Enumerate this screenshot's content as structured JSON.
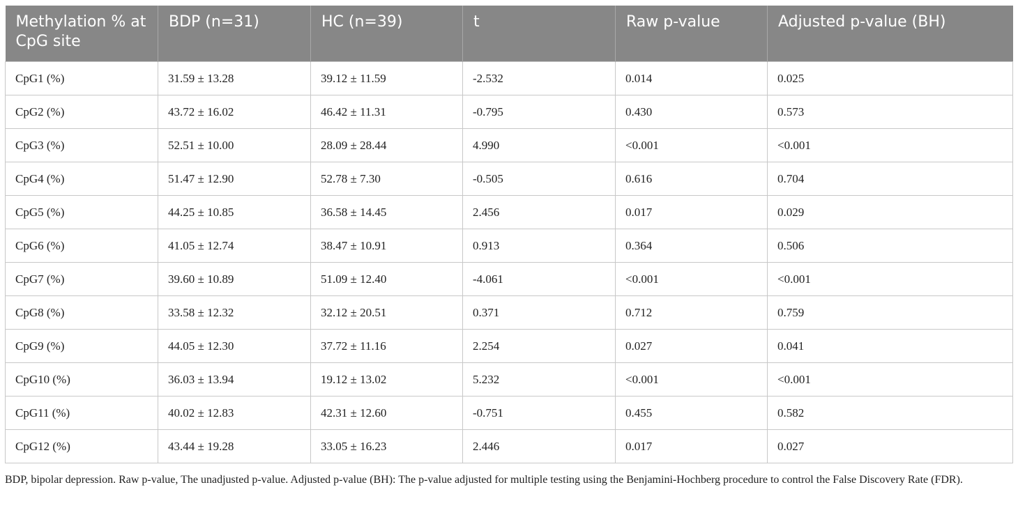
{
  "table": {
    "header": [
      "Methylation % at CpG site",
      "BDP (n=31)",
      "HC (n=39)",
      "t",
      "Raw p-value",
      "Adjusted p-value (BH)"
    ],
    "rows": [
      [
        "CpG1 (%)",
        "31.59 ± 13.28",
        "39.12 ± 11.59",
        "-2.532",
        "0.014",
        "0.025"
      ],
      [
        "CpG2 (%)",
        "43.72 ± 16.02",
        "46.42 ± 11.31",
        "-0.795",
        "0.430",
        "0.573"
      ],
      [
        "CpG3 (%)",
        "52.51 ± 10.00",
        "28.09 ± 28.44",
        "4.990",
        "<0.001",
        "<0.001"
      ],
      [
        "CpG4 (%)",
        "51.47 ± 12.90",
        "52.78 ± 7.30",
        "-0.505",
        "0.616",
        "0.704"
      ],
      [
        "CpG5 (%)",
        "44.25 ± 10.85",
        "36.58 ± 14.45",
        "2.456",
        "0.017",
        "0.029"
      ],
      [
        "CpG6 (%)",
        "41.05 ± 12.74",
        "38.47 ± 10.91",
        "0.913",
        "0.364",
        "0.506"
      ],
      [
        "CpG7 (%)",
        "39.60 ± 10.89",
        "51.09 ± 12.40",
        "-4.061",
        "<0.001",
        "<0.001"
      ],
      [
        "CpG8 (%)",
        "33.58 ± 12.32",
        "32.12 ± 20.51",
        "0.371",
        "0.712",
        "0.759"
      ],
      [
        "CpG9 (%)",
        "44.05 ± 12.30",
        "37.72 ± 11.16",
        "2.254",
        "0.027",
        "0.041"
      ],
      [
        "CpG10 (%)",
        "36.03 ± 13.94",
        "19.12 ± 13.02",
        "5.232",
        "<0.001",
        "<0.001"
      ],
      [
        "CpG11 (%)",
        "40.02 ± 12.83",
        "42.31 ± 12.60",
        "-0.751",
        "0.455",
        "0.582"
      ],
      [
        "CpG12 (%)",
        "43.44 ± 19.28",
        "33.05 ± 16.23",
        "2.446",
        "0.017",
        "0.027"
      ]
    ],
    "footnote": "BDP, bipolar depression. Raw p-value, The unadjusted p-value. Adjusted p-value (BH): The p-value adjusted for multiple testing using the Benjamini-Hochberg procedure to control the False Discovery Rate (FDR)."
  }
}
